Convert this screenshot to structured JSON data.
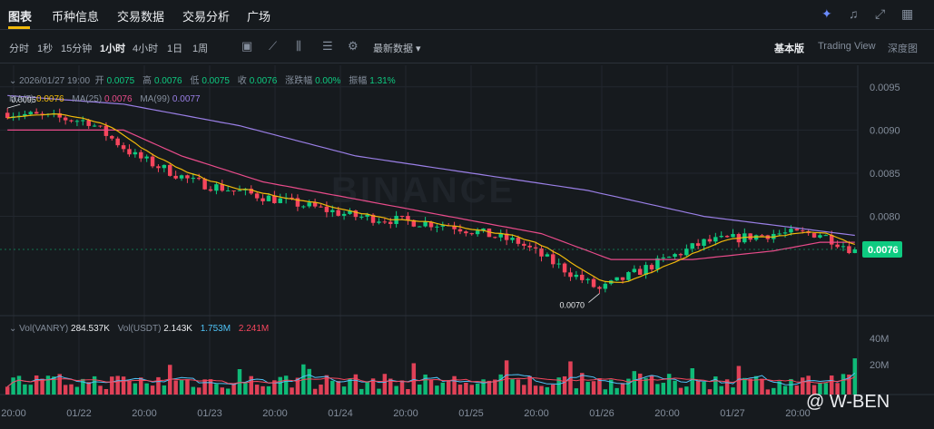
{
  "tabs": [
    {
      "label": "图表"
    },
    {
      "label": "币种信息"
    },
    {
      "label": "交易数据"
    },
    {
      "label": "交易分析"
    },
    {
      "label": "广场"
    }
  ],
  "intervals": [
    {
      "label": "分时"
    },
    {
      "label": "1秒"
    },
    {
      "label": "15分钟"
    },
    {
      "label": "1小时"
    },
    {
      "label": "4小时"
    },
    {
      "label": "1日"
    },
    {
      "label": "1周"
    }
  ],
  "latest_data": "最新数据 ▾",
  "views": [
    {
      "label": "基本版"
    },
    {
      "label": "Trading View"
    },
    {
      "label": "深度图"
    }
  ],
  "info": {
    "date": "2026/01/27 19:00",
    "open_label": "开",
    "open": "0.0075",
    "high_label": "高",
    "high": "0.0076",
    "low_label": "低",
    "low": "0.0075",
    "close_label": "收",
    "close": "0.0076",
    "change_label": "涨跌幅",
    "change": "0.00%",
    "amp_label": "振幅",
    "amp": "1.31%"
  },
  "ma": {
    "ma7_label": "MA(7)",
    "ma7": "0.0076",
    "ma25_label": "MA(25)",
    "ma25": "0.0076",
    "ma99_label": "MA(99)",
    "ma99": "0.0077"
  },
  "vol": {
    "vol1_label": "Vol(VANRY)",
    "vol1": "284.537K",
    "vol2_label": "Vol(USDT)",
    "vol2": "2.143K",
    "v3": "1.753M",
    "v4": "2.241M"
  },
  "watermark": "BINANCE",
  "brand": "@ W-BEN",
  "chart_data": {
    "type": "candlestick",
    "price_ticks": [
      "0.0095",
      "0.0090",
      "0.0085",
      "0.0080"
    ],
    "price_tick_values": [
      0.0095,
      0.009,
      0.0085,
      0.008
    ],
    "current_price_label": "0.0076",
    "high_marker": "0.0095",
    "low_marker": "0.0070",
    "volume_ticks": [
      "40M",
      "20M"
    ],
    "x_labels": [
      "20:00",
      "01/22",
      "20:00",
      "01/23",
      "20:00",
      "01/24",
      "20:00",
      "01/25",
      "20:00",
      "01/26",
      "20:00",
      "01/27",
      "20:00"
    ],
    "ylim": [
      0.00685,
      0.00975
    ],
    "colors": {
      "up": "#0ecb81",
      "down": "#f6465d",
      "ma7": "#f0b90b",
      "ma25": "#e84b8a",
      "ma99": "#9a7fe6"
    },
    "close_keypoints": [
      [
        0,
        0.0092
      ],
      [
        14,
        0.0091
      ],
      [
        22,
        0.0087
      ],
      [
        32,
        0.0084
      ],
      [
        46,
        0.0082
      ],
      [
        60,
        0.008
      ],
      [
        76,
        0.0079
      ],
      [
        88,
        0.0077
      ],
      [
        102,
        0.00715
      ],
      [
        110,
        0.0074
      ],
      [
        120,
        0.0077
      ],
      [
        132,
        0.0078
      ],
      [
        140,
        0.0078
      ],
      [
        146,
        0.0076
      ]
    ],
    "ma25_keypoints": [
      [
        0,
        0.009
      ],
      [
        20,
        0.009
      ],
      [
        30,
        0.0087
      ],
      [
        44,
        0.0084
      ],
      [
        60,
        0.0082
      ],
      [
        76,
        0.008
      ],
      [
        92,
        0.0078
      ],
      [
        104,
        0.0075
      ],
      [
        118,
        0.0075
      ],
      [
        132,
        0.0076
      ],
      [
        140,
        0.0077
      ],
      [
        146,
        0.0077
      ]
    ],
    "ma99_keypoints": [
      [
        0,
        0.0094
      ],
      [
        20,
        0.0093
      ],
      [
        40,
        0.00905
      ],
      [
        60,
        0.0087
      ],
      [
        80,
        0.0085
      ],
      [
        100,
        0.0083
      ],
      [
        120,
        0.008
      ],
      [
        146,
        0.00778
      ]
    ]
  }
}
